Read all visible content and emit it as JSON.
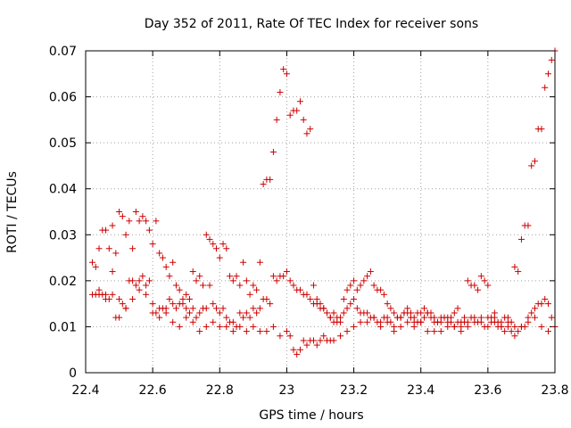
{
  "chart_data": {
    "type": "scatter",
    "title": "Day 352 of 2011, Rate Of TEC Index for receiver sons",
    "xlabel": "GPS time / hours",
    "ylabel": "ROTI / TECUs",
    "xlim": [
      22.4,
      23.8
    ],
    "ylim": [
      0,
      0.07
    ],
    "x_ticks": [
      "22.4",
      "22.6",
      "22.8",
      "23",
      "23.2",
      "23.4",
      "23.6",
      "23.8"
    ],
    "y_ticks": [
      "0",
      "0.01",
      "0.02",
      "0.03",
      "0.04",
      "0.05",
      "0.06",
      "0.07"
    ],
    "grid": true,
    "marker": "plus",
    "color": "#cc0000",
    "series": [
      {
        "x": [
          22.42,
          22.43,
          22.44,
          22.45,
          22.46,
          22.47,
          22.48,
          22.49,
          22.5,
          22.51,
          22.52,
          22.53,
          22.54,
          22.55,
          22.56,
          22.57,
          22.58,
          22.59,
          22.6,
          22.61,
          22.62,
          22.63,
          22.64,
          22.65,
          22.66,
          22.67,
          22.68,
          22.69,
          22.7,
          22.71,
          22.72,
          22.73,
          22.74,
          22.75,
          22.76,
          22.77,
          22.78,
          22.79,
          22.8,
          22.81,
          22.82,
          22.83,
          22.84,
          22.85,
          22.86,
          22.87,
          22.88,
          22.89,
          22.9,
          22.91,
          22.92,
          22.93,
          22.94,
          22.95,
          22.96,
          22.97,
          22.98,
          22.99,
          23.0,
          23.01,
          23.02,
          23.03,
          23.04,
          23.05,
          23.06,
          23.07,
          23.08,
          23.09,
          23.1,
          23.11,
          23.12,
          23.13,
          23.14,
          23.15,
          23.16,
          23.17,
          23.18,
          23.19,
          23.2,
          23.21,
          23.22,
          23.23,
          23.24,
          23.25,
          23.26,
          23.27,
          23.28,
          23.29,
          23.3,
          23.31,
          23.32,
          23.33,
          23.34,
          23.35,
          23.36,
          23.37,
          23.38,
          23.39,
          23.4,
          23.41,
          23.42,
          23.43,
          23.44,
          23.45,
          23.46,
          23.47,
          23.48,
          23.49,
          23.5,
          23.51,
          23.52,
          23.53,
          23.54,
          23.55,
          23.56,
          23.57,
          23.58,
          23.59,
          23.6,
          23.61,
          23.62,
          23.63,
          23.64,
          23.65,
          23.66,
          23.67,
          23.68,
          23.69,
          23.7,
          23.71,
          23.72,
          23.73,
          23.74,
          23.75,
          23.76,
          23.77,
          23.78,
          23.79,
          23.8
        ],
        "y": [
          0.024,
          0.023,
          0.027,
          0.031,
          0.031,
          0.027,
          0.032,
          0.026,
          0.035,
          0.034,
          0.03,
          0.033,
          0.027,
          0.035,
          0.033,
          0.034,
          0.033,
          0.031,
          0.028,
          0.033,
          0.026,
          0.025,
          0.023,
          0.021,
          0.024,
          0.019,
          0.018,
          0.016,
          0.017,
          0.016,
          0.022,
          0.02,
          0.021,
          0.019,
          0.03,
          0.029,
          0.028,
          0.027,
          0.025,
          0.028,
          0.027,
          0.021,
          0.02,
          0.021,
          0.019,
          0.024,
          0.02,
          0.017,
          0.019,
          0.018,
          0.024,
          0.041,
          0.042,
          0.042,
          0.048,
          0.055,
          0.061,
          0.066,
          0.065,
          0.056,
          0.057,
          0.057,
          0.059,
          0.055,
          0.052,
          0.053,
          0.019,
          0.016,
          0.015,
          0.014,
          0.013,
          0.012,
          0.011,
          0.011,
          0.011,
          0.016,
          0.018,
          0.019,
          0.02,
          0.018,
          0.019,
          0.02,
          0.021,
          0.022,
          0.019,
          0.018,
          0.018,
          0.017,
          0.015,
          0.014,
          0.013,
          0.012,
          0.012,
          0.013,
          0.014,
          0.013,
          0.012,
          0.013,
          0.013,
          0.014,
          0.013,
          0.012,
          0.011,
          0.011,
          0.012,
          0.012,
          0.011,
          0.012,
          0.013,
          0.014,
          0.011,
          0.012,
          0.02,
          0.019,
          0.019,
          0.018,
          0.021,
          0.02,
          0.019,
          0.012,
          0.012,
          0.011,
          0.01,
          0.012,
          0.012,
          0.011,
          0.023,
          0.022,
          0.029,
          0.032,
          0.032,
          0.045,
          0.046,
          0.053,
          0.053,
          0.062,
          0.065,
          0.068,
          0.07
        ]
      },
      {
        "x": [
          22.42,
          22.43,
          22.44,
          22.45,
          22.46,
          22.47,
          22.48,
          22.49,
          22.5,
          22.51,
          22.52,
          22.53,
          22.54,
          22.55,
          22.56,
          22.57,
          22.58,
          22.59,
          22.6,
          22.61,
          22.62,
          22.63,
          22.64,
          22.65,
          22.66,
          22.67,
          22.68,
          22.69,
          22.7,
          22.71,
          22.72,
          22.73,
          22.74,
          22.75,
          22.76,
          22.77,
          22.78,
          22.79,
          22.8,
          22.81,
          22.82,
          22.83,
          22.84,
          22.85,
          22.86,
          22.87,
          22.88,
          22.89,
          22.9,
          22.91,
          22.92,
          22.93,
          22.94,
          22.95,
          22.96,
          22.97,
          22.98,
          22.99,
          23.0,
          23.01,
          23.02,
          23.03,
          23.04,
          23.05,
          23.06,
          23.07,
          23.08,
          23.09,
          23.1,
          23.11,
          23.12,
          23.13,
          23.14,
          23.15,
          23.16,
          23.17,
          23.18,
          23.19,
          23.2,
          23.21,
          23.22,
          23.23,
          23.24,
          23.25,
          23.26,
          23.27,
          23.28,
          23.29,
          23.3,
          23.31,
          23.32,
          23.33,
          23.34,
          23.35,
          23.36,
          23.37,
          23.38,
          23.39,
          23.4,
          23.41,
          23.42,
          23.43,
          23.44,
          23.45,
          23.46,
          23.47,
          23.48,
          23.49,
          23.5,
          23.51,
          23.52,
          23.53,
          23.54,
          23.55,
          23.56,
          23.57,
          23.58,
          23.59,
          23.6,
          23.61,
          23.62,
          23.63,
          23.64,
          23.65,
          23.66,
          23.67,
          23.68,
          23.69,
          23.7,
          23.71,
          23.72,
          23.73,
          23.74,
          23.75,
          23.76,
          23.77,
          23.78,
          23.79,
          23.8
        ],
        "y": [
          0.017,
          0.017,
          0.018,
          0.017,
          0.017,
          0.016,
          0.022,
          0.012,
          0.012,
          0.015,
          0.014,
          0.02,
          0.02,
          0.019,
          0.02,
          0.021,
          0.019,
          0.02,
          0.015,
          0.013,
          0.014,
          0.014,
          0.014,
          0.016,
          0.015,
          0.014,
          0.015,
          0.015,
          0.014,
          0.013,
          0.014,
          0.012,
          0.013,
          0.014,
          0.014,
          0.019,
          0.015,
          0.014,
          0.013,
          0.014,
          0.012,
          0.011,
          0.011,
          0.01,
          0.013,
          0.012,
          0.013,
          0.012,
          0.014,
          0.013,
          0.014,
          0.016,
          0.016,
          0.015,
          0.021,
          0.02,
          0.021,
          0.021,
          0.022,
          0.02,
          0.019,
          0.018,
          0.018,
          0.017,
          0.017,
          0.016,
          0.015,
          0.015,
          0.014,
          0.014,
          0.013,
          0.012,
          0.013,
          0.012,
          0.012,
          0.013,
          0.014,
          0.015,
          0.016,
          0.014,
          0.013,
          0.013,
          0.013,
          0.012,
          0.012,
          0.011,
          0.011,
          0.012,
          0.012,
          0.011,
          0.01,
          0.012,
          0.012,
          0.013,
          0.013,
          0.012,
          0.011,
          0.011,
          0.011,
          0.012,
          0.013,
          0.013,
          0.012,
          0.011,
          0.011,
          0.012,
          0.012,
          0.011,
          0.01,
          0.011,
          0.01,
          0.011,
          0.011,
          0.012,
          0.012,
          0.011,
          0.011,
          0.01,
          0.01,
          0.011,
          0.011,
          0.01,
          0.01,
          0.009,
          0.01,
          0.009,
          0.008,
          0.009,
          0.01,
          0.01,
          0.012,
          0.013,
          0.014,
          0.015,
          0.015,
          0.016,
          0.015,
          0.012,
          0.01
        ]
      },
      {
        "x": [
          22.44,
          22.46,
          22.48,
          22.5,
          22.52,
          22.54,
          22.56,
          22.58,
          22.6,
          22.62,
          22.64,
          22.66,
          22.68,
          22.7,
          22.72,
          22.74,
          22.76,
          22.78,
          22.8,
          22.82,
          22.84,
          22.86,
          22.88,
          22.9,
          22.92,
          22.94,
          22.96,
          22.98,
          23.0,
          23.01,
          23.02,
          23.03,
          23.04,
          23.05,
          23.06,
          23.07,
          23.08,
          23.09,
          23.1,
          23.11,
          23.12,
          23.13,
          23.14,
          23.16,
          23.18,
          23.2,
          23.22,
          23.24,
          23.26,
          23.28,
          23.3,
          23.32,
          23.34,
          23.36,
          23.38,
          23.4,
          23.42,
          23.44,
          23.46,
          23.48,
          23.5,
          23.52,
          23.54,
          23.56,
          23.58,
          23.6,
          23.62,
          23.64,
          23.66,
          23.68,
          23.7,
          23.72,
          23.74,
          23.76,
          23.78
        ],
        "y": [
          0.017,
          0.016,
          0.017,
          0.016,
          0.014,
          0.016,
          0.018,
          0.017,
          0.013,
          0.012,
          0.013,
          0.011,
          0.01,
          0.012,
          0.011,
          0.009,
          0.01,
          0.011,
          0.01,
          0.01,
          0.009,
          0.01,
          0.009,
          0.01,
          0.009,
          0.009,
          0.01,
          0.008,
          0.009,
          0.008,
          0.005,
          0.004,
          0.005,
          0.007,
          0.006,
          0.007,
          0.007,
          0.006,
          0.007,
          0.008,
          0.007,
          0.007,
          0.007,
          0.008,
          0.009,
          0.01,
          0.011,
          0.011,
          0.012,
          0.01,
          0.011,
          0.009,
          0.01,
          0.011,
          0.01,
          0.011,
          0.009,
          0.009,
          0.009,
          0.01,
          0.01,
          0.009,
          0.01,
          0.011,
          0.012,
          0.012,
          0.013,
          0.011,
          0.011,
          0.01,
          0.01,
          0.011,
          0.012,
          0.01,
          0.009
        ]
      }
    ]
  }
}
